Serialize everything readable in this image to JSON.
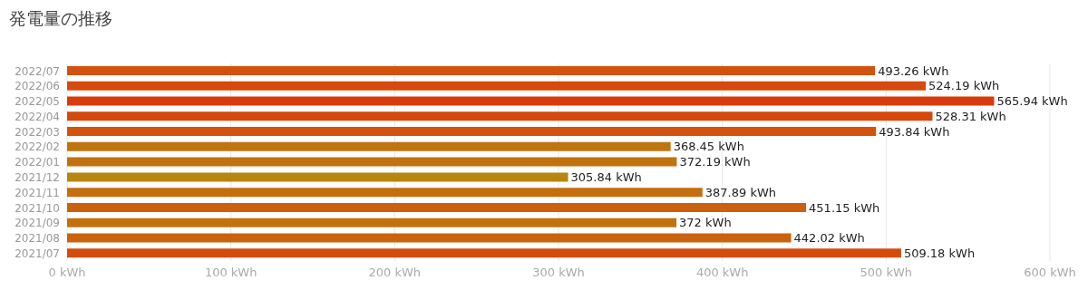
{
  "chart_data": {
    "type": "bar",
    "title": "発電量の推移",
    "orientation": "horizontal",
    "categories": [
      "2022/07",
      "2022/06",
      "2022/05",
      "2022/04",
      "2022/03",
      "2022/02",
      "2022/01",
      "2021/12",
      "2021/11",
      "2021/10",
      "2021/09",
      "2021/08",
      "2021/07"
    ],
    "series": [
      {
        "colors": [
          "#d2520e",
          "#d54a0d",
          "#d93a0c",
          "#d5490d",
          "#d2520e",
          "#c0740f",
          "#c1720f",
          "#b6860f",
          "#c36e0f",
          "#cb600e",
          "#c1720f",
          "#ca620e",
          "#d44c0d"
        ],
        "values": [
          493.26,
          524.19,
          565.94,
          528.31,
          493.84,
          368.45,
          372.19,
          305.84,
          387.89,
          451.15,
          372,
          442.02,
          509.18
        ]
      }
    ],
    "value_labels": [
      "493.26 kWh",
      "524.19 kWh",
      "565.94 kWh",
      "528.31 kWh",
      "493.84 kWh",
      "368.45 kWh",
      "372.19 kWh",
      "305.84 kWh",
      "387.89 kWh",
      "451.15 kWh",
      "372 kWh",
      "442.02 kWh",
      "509.18 kWh"
    ],
    "xlim": [
      0,
      600
    ],
    "xticks": [
      {
        "value": 0,
        "label": "0 kWh"
      },
      {
        "value": 100,
        "label": "100 kWh"
      },
      {
        "value": 200,
        "label": "200 kWh"
      },
      {
        "value": 300,
        "label": "300 kWh"
      },
      {
        "value": 400,
        "label": "400 kWh"
      },
      {
        "value": 500,
        "label": "500 kWh"
      },
      {
        "value": 600,
        "label": "600 kWh"
      }
    ],
    "grid": "x"
  }
}
